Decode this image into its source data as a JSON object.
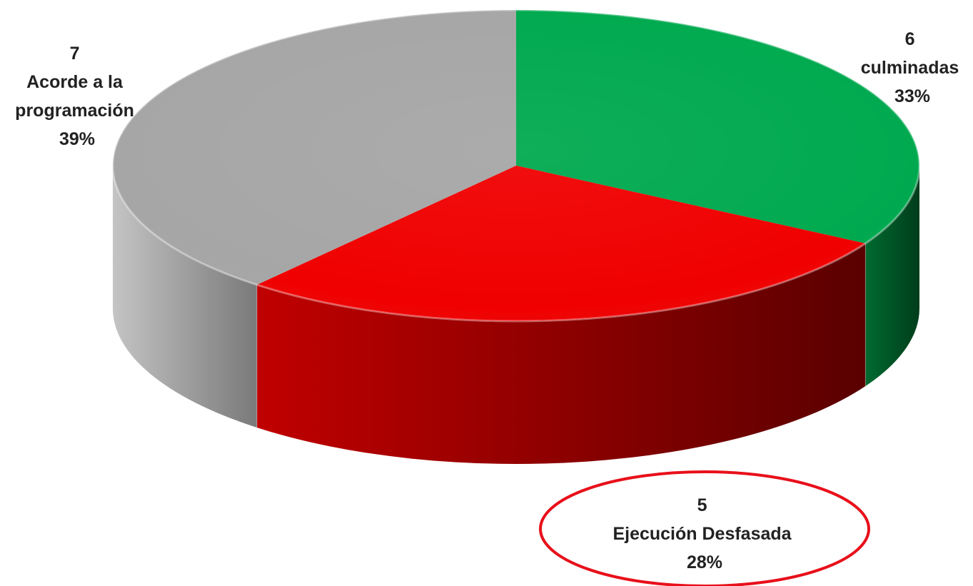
{
  "chart_data": {
    "type": "pie",
    "style": "3d",
    "slices": [
      {
        "count": "6",
        "label": "culminadas",
        "percent_label": "33%",
        "value": 6,
        "percent": 33,
        "color": "#00A94F",
        "side_color_light": "#006a30",
        "side_color_dark": "#003d1b"
      },
      {
        "count": "5",
        "label": "Ejecución Desfasada",
        "percent_label": "28%",
        "value": 5,
        "percent": 28,
        "color": "#F00000",
        "side_color_light": "#c00000",
        "side_color_dark": "#5a0000"
      },
      {
        "count": "7",
        "label": "Acorde a la programación",
        "label_lines": [
          "Acorde a la",
          "programación"
        ],
        "percent_label": "39%",
        "value": 7,
        "percent": 39,
        "color": "#A6A6A6",
        "side_color_light": "#c4c4c4",
        "side_color_dark": "#7a7a7a"
      }
    ],
    "highlight": {
      "slice_index": 1,
      "shape": "ellipse",
      "color": "#E8101A"
    },
    "start_angle": "12 o'clock",
    "direction": "clockwise",
    "legend": "none"
  }
}
